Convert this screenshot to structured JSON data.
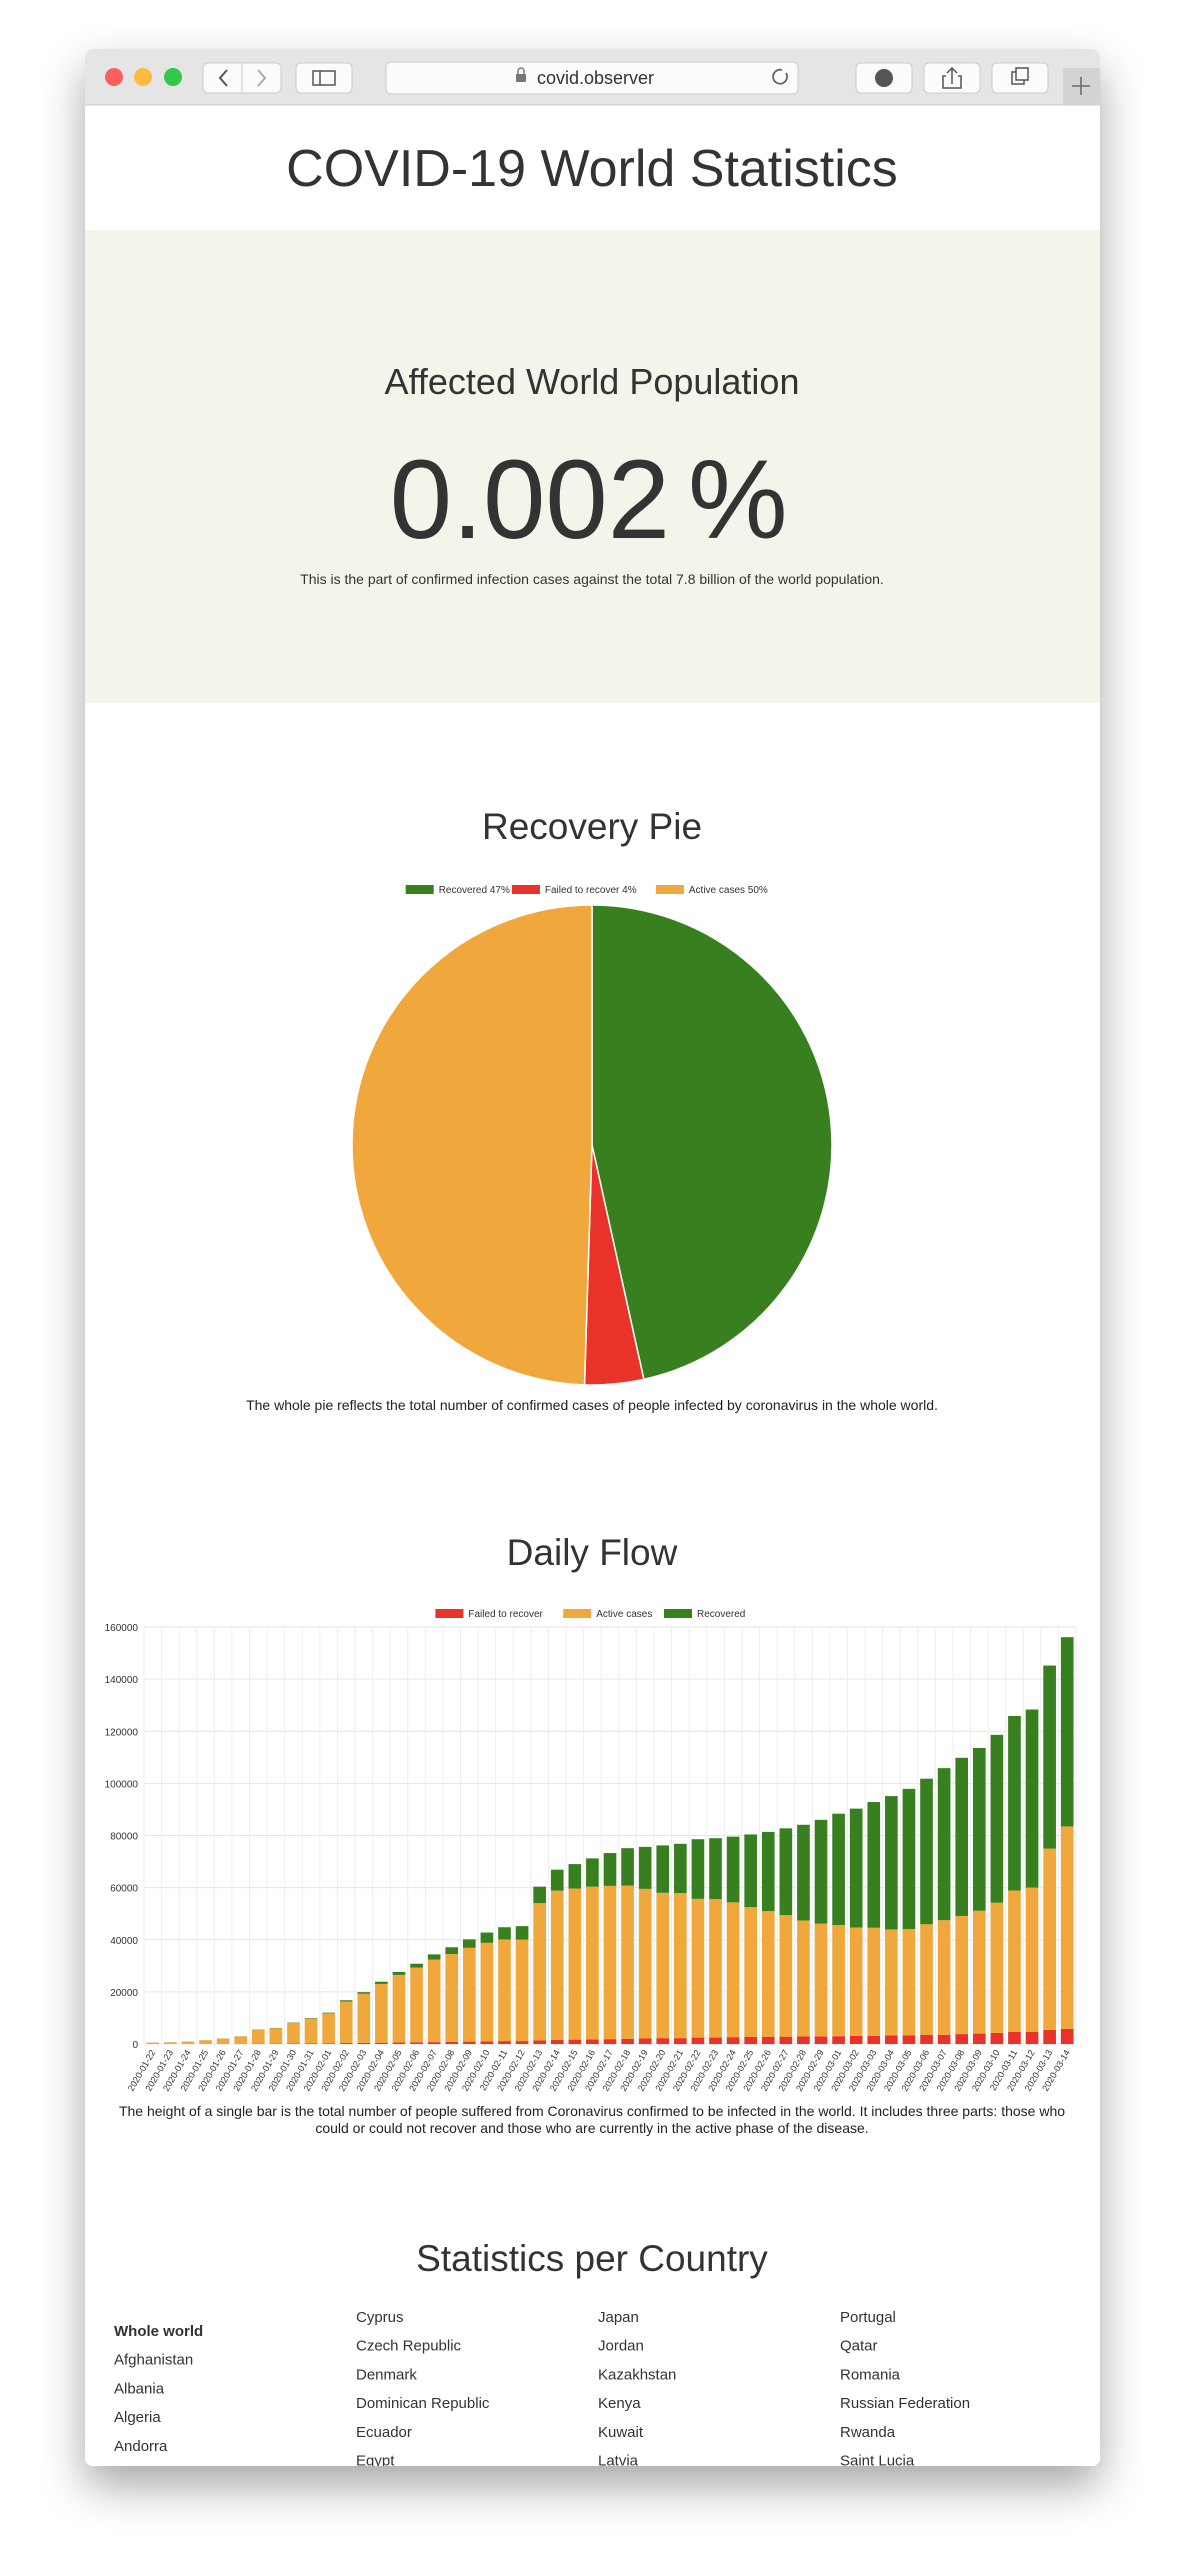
{
  "browser": {
    "url": "covid.observer"
  },
  "header": {
    "title": "COVID-19 World Statistics"
  },
  "affected": {
    "heading": "Affected World Population",
    "value": "0.002",
    "unit": "%",
    "note": "This is the part of confirmed infection cases against the total 7.8 billion of the world population."
  },
  "chart_data": [
    {
      "type": "pie",
      "title": "Recovery Pie",
      "categories": [
        "Recovered 47%",
        "Failed to recover 4%",
        "Active cases 50%"
      ],
      "values": [
        47,
        4,
        50
      ],
      "colors": [
        "#38801f",
        "#e8322a",
        "#f0a83c"
      ],
      "caption": "The whole pie reflects the total number of confirmed cases of people infected by coronavirus in the whole world."
    },
    {
      "type": "bar",
      "stacked": true,
      "title": "Daily Flow",
      "categories": [
        "2020-01-22",
        "2020-01-23",
        "2020-01-24",
        "2020-01-25",
        "2020-01-26",
        "2020-01-27",
        "2020-01-28",
        "2020-01-29",
        "2020-01-30",
        "2020-01-31",
        "2020-02-01",
        "2020-02-02",
        "2020-02-03",
        "2020-02-04",
        "2020-02-05",
        "2020-02-06",
        "2020-02-07",
        "2020-02-08",
        "2020-02-09",
        "2020-02-10",
        "2020-02-11",
        "2020-02-12",
        "2020-02-13",
        "2020-02-14",
        "2020-02-15",
        "2020-02-16",
        "2020-02-17",
        "2020-02-18",
        "2020-02-19",
        "2020-02-20",
        "2020-02-21",
        "2020-02-22",
        "2020-02-23",
        "2020-02-24",
        "2020-02-25",
        "2020-02-26",
        "2020-02-27",
        "2020-02-28",
        "2020-02-29",
        "2020-03-01",
        "2020-03-02",
        "2020-03-03",
        "2020-03-04",
        "2020-03-05",
        "2020-03-06",
        "2020-03-07",
        "2020-03-08",
        "2020-03-09",
        "2020-03-10",
        "2020-03-11",
        "2020-03-12",
        "2020-03-13",
        "2020-03-14"
      ],
      "series": [
        {
          "name": "Failed to recover",
          "color": "#e8322a",
          "values": [
            17,
            18,
            26,
            42,
            56,
            82,
            131,
            133,
            171,
            213,
            259,
            362,
            426,
            492,
            564,
            634,
            719,
            806,
            906,
            1013,
            1113,
            1118,
            1371,
            1523,
            1666,
            1770,
            1868,
            2007,
            2122,
            2247,
            2251,
            2458,
            2469,
            2629,
            2708,
            2770,
            2814,
            2872,
            2941,
            2996,
            3085,
            3160,
            3254,
            3348,
            3460,
            3558,
            3802,
            3988,
            4262,
            4615,
            4720,
            5404,
            5819
          ]
        },
        {
          "name": "Active cases",
          "color": "#f0a83c",
          "values": [
            510,
            606,
            879,
            1353,
            2010,
            2784,
            5340,
            5907,
            7920,
            9492,
            11495,
            15953,
            18832,
            22548,
            25947,
            28673,
            31661,
            33698,
            36000,
            37803,
            39006,
            38953,
            52702,
            57304,
            57969,
            58589,
            58807,
            58777,
            57396,
            55773,
            55678,
            53228,
            53095,
            51705,
            49793,
            48234,
            46655,
            44529,
            43288,
            42657,
            41619,
            41452,
            40696,
            40742,
            42476,
            43931,
            45325,
            47108,
            49954,
            54257,
            55308,
            69550,
            77658
          ]
        },
        {
          "name": "Recovered",
          "color": "#38801f",
          "values": [
            28,
            30,
            36,
            39,
            52,
            61,
            107,
            126,
            143,
            222,
            284,
            472,
            623,
            852,
            1124,
            1487,
            2011,
            2616,
            3244,
            3946,
            4683,
            5150,
            6295,
            8058,
            9395,
            10865,
            12583,
            14352,
            16121,
            18177,
            18890,
            22886,
            23394,
            25227,
            27905,
            30384,
            33277,
            36711,
            39782,
            42716,
            45602,
            48228,
            51170,
            53796,
            55865,
            58358,
            60694,
            62494,
            64404,
            67003,
            68324,
            70251,
            72624
          ]
        }
      ],
      "ylim": [
        0,
        160000
      ],
      "yticks": [
        0,
        20000,
        40000,
        60000,
        80000,
        100000,
        120000,
        140000,
        160000
      ],
      "grid": true,
      "caption": "The height of a single bar is the total number of people suffered from Coronavirus confirmed to be infected in the world. It includes three parts: those who could or could not recover and those who are currently in the active phase of the disease."
    }
  ],
  "countries": {
    "heading": "Statistics per Country",
    "columns": [
      [
        "Whole world",
        "Afghanistan",
        "Albania",
        "Algeria",
        "Andorra"
      ],
      [
        "Cyprus",
        "Czech Republic",
        "Denmark",
        "Dominican Republic",
        "Ecuador",
        "Egypt"
      ],
      [
        "Japan",
        "Jordan",
        "Kazakhstan",
        "Kenya",
        "Kuwait",
        "Latvia"
      ],
      [
        "Portugal",
        "Qatar",
        "Romania",
        "Russian Federation",
        "Rwanda",
        "Saint Lucia"
      ]
    ]
  }
}
